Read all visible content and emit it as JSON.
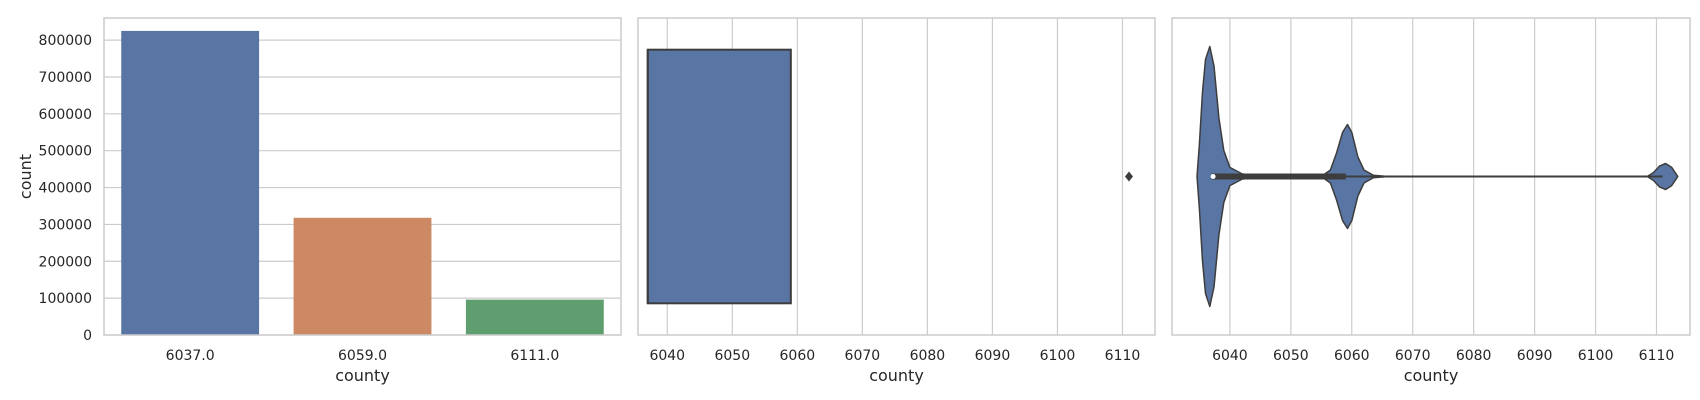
{
  "colors": {
    "bar_6037": "#5975a4",
    "bar_6059": "#cc8963",
    "bar_6111": "#5f9e6e",
    "box_fill": "#5975a4",
    "violin_fill": "#5975a4",
    "outline": "#3d3d3d",
    "grid": "#cccccc"
  },
  "chart_data": [
    {
      "type": "bar",
      "categories": [
        "6037.0",
        "6059.0",
        "6111.0"
      ],
      "values": [
        825000,
        318000,
        96000
      ],
      "xlabel": "county",
      "ylabel": "count",
      "ylim": [
        0,
        860000
      ],
      "yticks": [
        0,
        100000,
        200000,
        300000,
        400000,
        500000,
        600000,
        700000,
        800000
      ],
      "grid": "horizontal"
    },
    {
      "type": "box",
      "xlabel": "county",
      "xlim": [
        6035.5,
        6115
      ],
      "xticks": [
        6040,
        6050,
        6060,
        6070,
        6080,
        6090,
        6100,
        6110
      ],
      "box": {
        "q1": 6037,
        "median": 6037,
        "q3": 6059,
        "whisker_low": 6037,
        "whisker_high": 6059
      },
      "outliers": [
        6111
      ],
      "grid": "vertical"
    },
    {
      "type": "violin",
      "xlabel": "county",
      "xlim": [
        6030.5,
        6115.5
      ],
      "xticks": [
        6040,
        6050,
        6060,
        6070,
        6080,
        6090,
        6100,
        6110
      ],
      "quartiles": {
        "q1": 6037,
        "median": 6037,
        "q3": 6059
      },
      "whisker_range": [
        6037,
        6059
      ],
      "range": [
        6037,
        6111
      ],
      "density_profile": [
        [
          6034.6,
          0.0
        ],
        [
          6035.0,
          0.25
        ],
        [
          6035.5,
          0.65
        ],
        [
          6036.0,
          0.9
        ],
        [
          6036.7,
          1.0
        ],
        [
          6037.4,
          0.85
        ],
        [
          6038.2,
          0.45
        ],
        [
          6039.0,
          0.2
        ],
        [
          6040.0,
          0.07
        ],
        [
          6042.0,
          0.02
        ],
        [
          6045.0,
          0.0
        ],
        [
          6050.0,
          0.0
        ],
        [
          6055.0,
          0.0
        ],
        [
          6056.5,
          0.05
        ],
        [
          6057.5,
          0.18
        ],
        [
          6058.5,
          0.34
        ],
        [
          6059.3,
          0.4
        ],
        [
          6060.0,
          0.34
        ],
        [
          6061.0,
          0.15
        ],
        [
          6062.0,
          0.05
        ],
        [
          6063.5,
          0.01
        ],
        [
          6066.0,
          0.0
        ],
        [
          6108.5,
          0.0
        ],
        [
          6109.5,
          0.03
        ],
        [
          6110.5,
          0.08
        ],
        [
          6111.5,
          0.1
        ],
        [
          6112.5,
          0.07
        ],
        [
          6113.5,
          0.0
        ]
      ],
      "grid": "vertical"
    }
  ]
}
